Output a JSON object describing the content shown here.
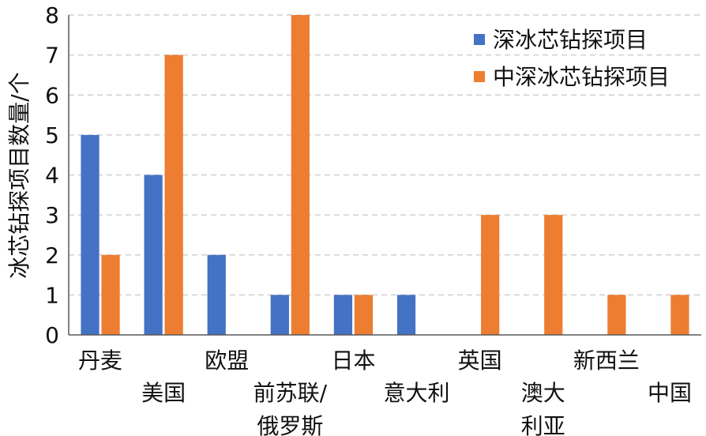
{
  "chart_data": {
    "type": "bar",
    "ylabel": "冰芯钻探项目数量/个",
    "ylim": [
      0,
      8
    ],
    "yticks": [
      0,
      1,
      2,
      3,
      4,
      5,
      6,
      7,
      8
    ],
    "grid": true,
    "legend_position": "top-right",
    "categories": [
      [
        "丹麦"
      ],
      [
        "美国"
      ],
      [
        "欧盟"
      ],
      [
        "前苏联/",
        "俄罗斯"
      ],
      [
        "日本"
      ],
      [
        "意大利"
      ],
      [
        "英国"
      ],
      [
        "澳大",
        "利亚"
      ],
      [
        "新西兰"
      ],
      [
        "中国"
      ]
    ],
    "series": [
      {
        "name": "深冰芯钻探项目",
        "color": "#4472C4",
        "values": [
          5,
          4,
          2,
          1,
          1,
          1,
          0,
          0,
          0,
          0
        ]
      },
      {
        "name": "中深冰芯钻探项目",
        "color": "#ED7D31",
        "values": [
          2,
          7,
          0,
          8,
          1,
          0,
          3,
          3,
          1,
          1
        ]
      }
    ]
  }
}
